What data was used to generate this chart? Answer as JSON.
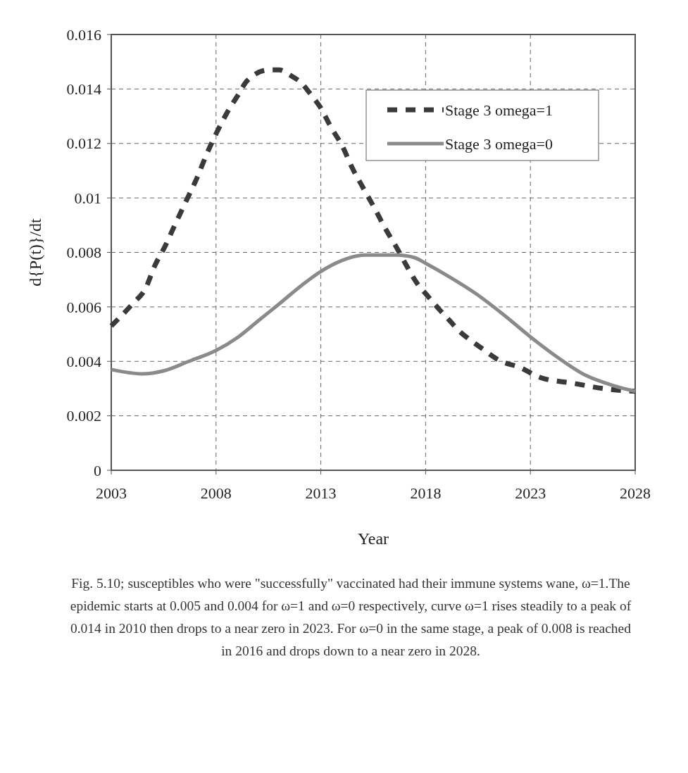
{
  "chart_data": {
    "type": "line",
    "xlabel": "Year",
    "ylabel": "d{P(t)}/dt",
    "xlim": [
      2003,
      2028
    ],
    "xticks": [
      2003,
      2008,
      2013,
      2018,
      2023,
      2028
    ],
    "ylim": [
      0,
      0.016
    ],
    "yticks": [
      0,
      0.002,
      0.004,
      0.006,
      0.008,
      0.01,
      0.012,
      0.014,
      0.016
    ],
    "grid": true,
    "legend": "top right",
    "marker": "none",
    "series": [
      {
        "name": "Stage 3 omega=1",
        "color": "#3a3a3a",
        "line_style": "dashed",
        "x": [
          2003,
          2004,
          2004.65,
          2005.07,
          2005.55,
          2006.03,
          2006.58,
          2007.07,
          2007.55,
          2008.03,
          2008.58,
          2009.07,
          2009.48,
          2010.52,
          2011,
          2011.55,
          2012.1,
          2012.52,
          2013,
          2013.48,
          2014.03,
          2014.5,
          2015.07,
          2015.58,
          2016.06,
          2016.6,
          2017.1,
          2017.56,
          2018.1,
          2018.66,
          2019.14,
          2019.62,
          2020.1,
          2020.64,
          2021.6,
          2022.42,
          2023.5,
          2025,
          2026.5,
          2028
        ],
        "values": [
          0.0053,
          0.0061,
          0.0067,
          0.0075,
          0.0082,
          0.009,
          0.0099,
          0.0107,
          0.0116,
          0.0124,
          0.0132,
          0.0138,
          0.0143,
          0.0147,
          0.0147,
          0.0145,
          0.0142,
          0.0138,
          0.0133,
          0.0126,
          0.0119,
          0.0111,
          0.0103,
          0.0096,
          0.0089,
          0.0082,
          0.0075,
          0.0069,
          0.0064,
          0.0059,
          0.0055,
          0.0051,
          0.0048,
          0.0045,
          0.004,
          0.0038,
          0.0034,
          0.0032,
          0.003,
          0.0029
        ]
      },
      {
        "name": "Stage 3 omega=0",
        "color": "#8a8a8a",
        "line_style": "solid",
        "x": [
          2003,
          2004.5,
          2005.5,
          2006.7,
          2008,
          2009.07,
          2010.03,
          2011,
          2012.1,
          2013,
          2014,
          2015.1,
          2016.6,
          2017.5,
          2018,
          2019.14,
          2020.37,
          2021.74,
          2023,
          2024.2,
          2025.6,
          2027,
          2028
        ],
        "values": [
          0.0037,
          0.00354,
          0.00365,
          0.004,
          0.0044,
          0.0049,
          0.0055,
          0.0061,
          0.0068,
          0.0073,
          0.0077,
          0.0079,
          0.0079,
          0.0078,
          0.0076,
          0.0071,
          0.0065,
          0.0057,
          0.0049,
          0.0042,
          0.0035,
          0.0031,
          0.0029
        ]
      }
    ],
    "annotations": [
      "Fig. 5.10; susceptibles who were \"successfully\" vaccinated had their immune systems wane, ω=1.The epidemic starts at 0.005 and 0.004 for ω=1 and ω=0 respectively, curve ω=1 rises steadily to a peak of 0.014 in 2010 then drops to a near zero in 2023. For ω=0 in the same stage, a peak of 0.008 is reached in 2016 and drops down to a near zero in 2028."
    ]
  }
}
